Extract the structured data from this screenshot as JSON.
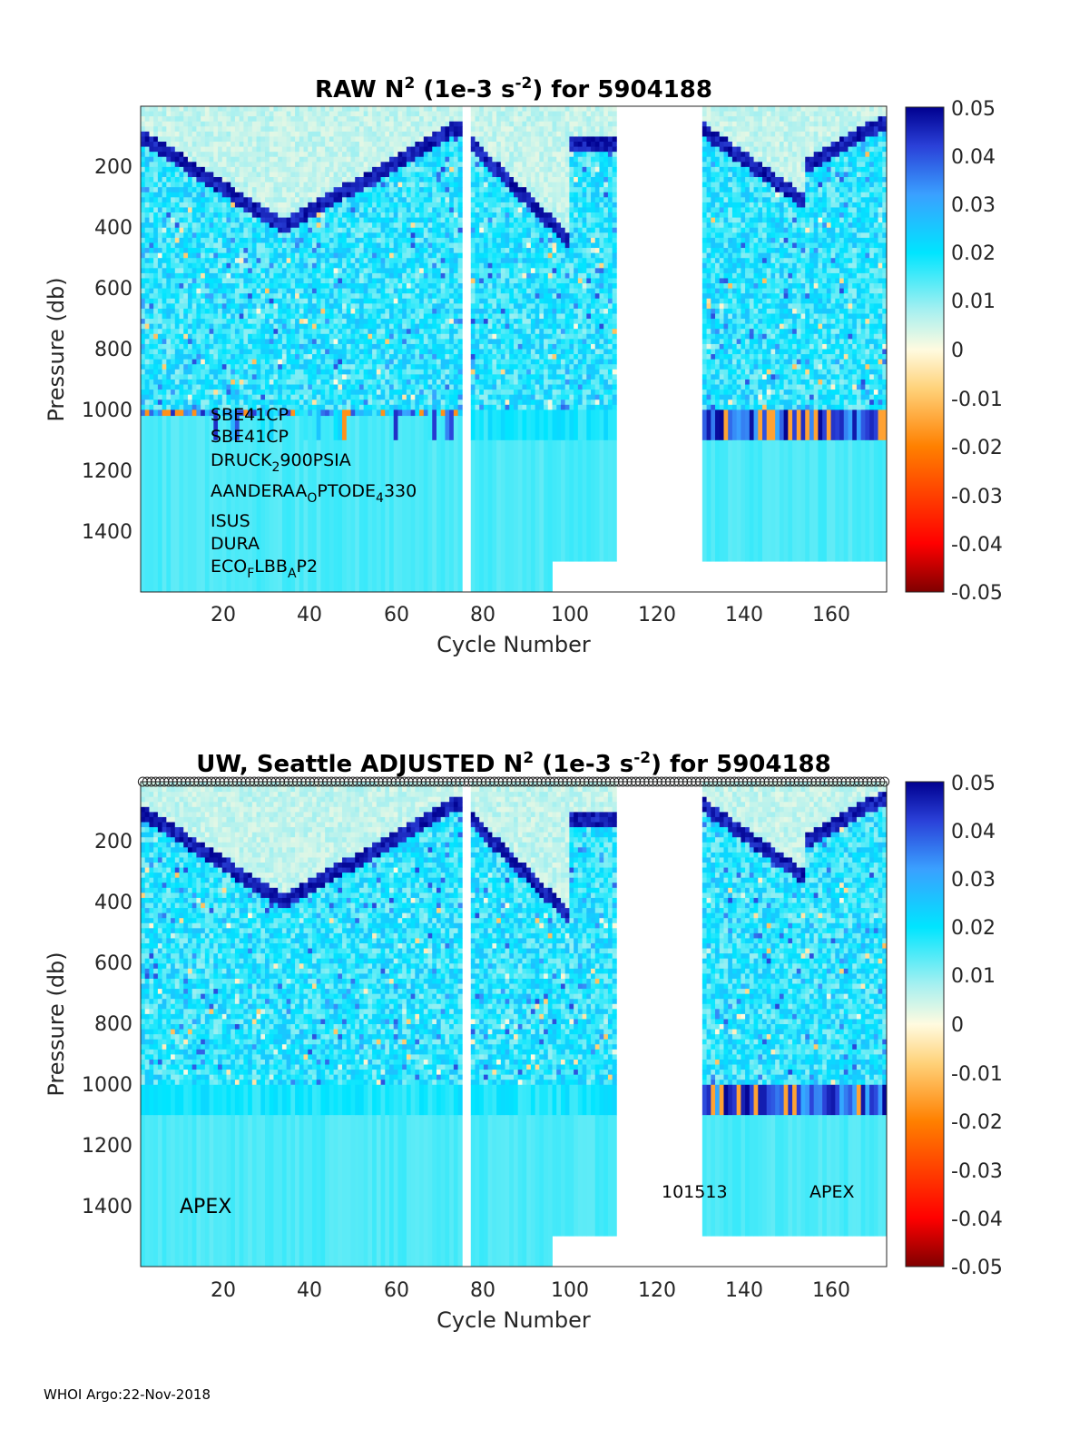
{
  "footer": "WHOI Argo:22-Nov-2018",
  "chart_data": [
    {
      "type": "heatmap",
      "title": {
        "part1": "RAW N",
        "sup1": "2",
        "part2": " (1e-3 s",
        "sup2": "-2",
        "part3": ") for 5904188"
      },
      "xlabel": "Cycle Number",
      "ylabel": "Pressure (db)",
      "xlim": [
        1,
        174
      ],
      "ylim": [
        0,
        1600
      ],
      "x_ticks": [
        20,
        40,
        60,
        80,
        100,
        120,
        140,
        160
      ],
      "y_ticks": [
        200,
        400,
        600,
        800,
        1000,
        1200,
        1400
      ],
      "colorbar": {
        "ticks": [
          "0.05",
          "0.04",
          "0.03",
          "0.02",
          "0.01",
          "0",
          "-0.01",
          "-0.02",
          "-0.03",
          "-0.04",
          "-0.05"
        ],
        "range": [
          -0.05,
          0.05
        ]
      },
      "gaps": [
        [
          76,
          77
        ],
        [
          112,
          131
        ]
      ],
      "annotations": [
        {
          "text": "SBE41CP"
        },
        {
          "text": "SBE41CP"
        },
        {
          "text": "DRUCK",
          "sub": "2",
          "rest": "900PSIA"
        },
        {
          "text": "AANDERAA",
          "sub": "O",
          "rest": "PTODE",
          "sub2": "4",
          "rest2": "330"
        },
        {
          "text": "ISUS"
        },
        {
          "text": "DURA"
        },
        {
          "text": "ECO",
          "sub": "F",
          "rest": "LBB",
          "sub2": "A",
          "rest2": "P2"
        }
      ],
      "labels": []
    },
    {
      "type": "heatmap",
      "title": {
        "part1": "UW, Seattle  ADJUSTED N",
        "sup1": "2",
        "part2": " (1e-3 s",
        "sup2": "-2",
        "part3": ") for 5904188"
      },
      "xlabel": "Cycle Number",
      "ylabel": "Pressure (db)",
      "xlim": [
        1,
        174
      ],
      "ylim": [
        0,
        1600
      ],
      "x_ticks": [
        20,
        40,
        60,
        80,
        100,
        120,
        140,
        160
      ],
      "y_ticks": [
        200,
        400,
        600,
        800,
        1000,
        1200,
        1400
      ],
      "colorbar": {
        "ticks": [
          "0.05",
          "0.04",
          "0.03",
          "0.02",
          "0.01",
          "0",
          "-0.01",
          "-0.02",
          "-0.03",
          "-0.04",
          "-0.05"
        ],
        "range": [
          -0.05,
          0.05
        ]
      },
      "gaps": [
        [
          76,
          77
        ],
        [
          112,
          131
        ]
      ],
      "annotations": [],
      "labels": [
        {
          "text": "APEX",
          "cycle": 16,
          "pressure": 1400
        },
        {
          "text": "101513",
          "cycle": 122,
          "pressure": 1350
        },
        {
          "text": "APEX",
          "cycle": 155,
          "pressure": 1350
        }
      ],
      "markers": "circles at surface, one per cycle"
    }
  ]
}
